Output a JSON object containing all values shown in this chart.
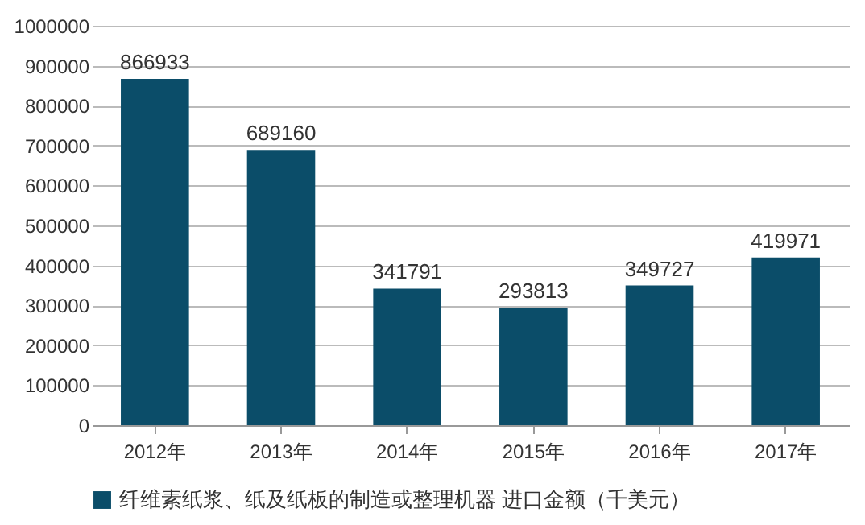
{
  "chart_data": {
    "type": "bar",
    "categories": [
      "2012年",
      "2013年",
      "2014年",
      "2015年",
      "2016年",
      "2017年"
    ],
    "series": [
      {
        "name": "纤维素纸浆、纸及纸板的制造或整理机器 进口金额（千美元）",
        "color": "#0b4d69",
        "values": [
          866933,
          689160,
          341791,
          293813,
          349727,
          419971
        ]
      }
    ],
    "ylim": [
      0,
      1000000
    ],
    "yticks": [
      0,
      100000,
      200000,
      300000,
      400000,
      500000,
      600000,
      700000,
      800000,
      900000,
      1000000
    ],
    "grid": "y",
    "legend": "bottom",
    "data_labels": true
  }
}
